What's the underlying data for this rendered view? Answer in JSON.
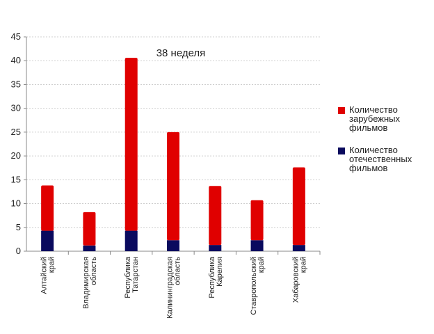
{
  "chart_data": {
    "type": "bar",
    "stacked": true,
    "title": "38 неделя",
    "xlabel": "",
    "ylabel": "",
    "ylim": [
      0,
      45
    ],
    "yticks": [
      0,
      5,
      10,
      15,
      20,
      25,
      30,
      35,
      40,
      45
    ],
    "grid": true,
    "legend_position": "right",
    "categories": [
      [
        "Алтайский",
        "край"
      ],
      [
        "Владимирская",
        "область"
      ],
      [
        "Республика",
        "Татарстан"
      ],
      [
        "Калининградская",
        "область"
      ],
      [
        "Республика",
        "Карелия"
      ],
      [
        "Ставропольский",
        "край"
      ],
      [
        "Хабаровский",
        "край"
      ]
    ],
    "series": [
      {
        "name": "Количество отечественных фильмов",
        "color": "#0a0a5e",
        "values": [
          4.3,
          1.2,
          4.3,
          2.3,
          1.3,
          2.3,
          1.3
        ]
      },
      {
        "name": "Количество зарубежных фильмов",
        "color": "#e00000",
        "values": [
          9.5,
          7.0,
          36.3,
          22.7,
          12.4,
          8.4,
          16.3
        ]
      }
    ]
  },
  "legend": {
    "items": [
      {
        "label": "Количество зарубежных фильмов",
        "color": "#e00000"
      },
      {
        "label": "Количество отечественных фильмов",
        "color": "#0a0a5e"
      }
    ]
  }
}
